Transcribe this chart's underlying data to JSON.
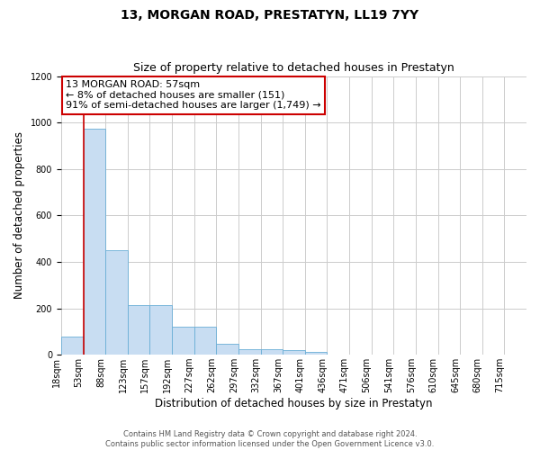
{
  "title": "13, MORGAN ROAD, PRESTATYN, LL19 7YY",
  "subtitle": "Size of property relative to detached houses in Prestatyn",
  "xlabel": "Distribution of detached houses by size in Prestatyn",
  "ylabel": "Number of detached properties",
  "bin_labels": [
    "18sqm",
    "53sqm",
    "88sqm",
    "123sqm",
    "157sqm",
    "192sqm",
    "227sqm",
    "262sqm",
    "297sqm",
    "332sqm",
    "367sqm",
    "401sqm",
    "436sqm",
    "471sqm",
    "506sqm",
    "541sqm",
    "576sqm",
    "610sqm",
    "645sqm",
    "680sqm",
    "715sqm"
  ],
  "bin_edges": [
    0,
    1,
    2,
    3,
    4,
    5,
    6,
    7,
    8,
    9,
    10,
    11,
    12,
    13,
    14,
    15,
    16,
    17,
    18,
    19,
    20,
    21
  ],
  "bar_heights": [
    80,
    975,
    450,
    215,
    215,
    120,
    120,
    47,
    25,
    25,
    20,
    12,
    0,
    0,
    0,
    0,
    0,
    0,
    0,
    0,
    0
  ],
  "bar_color": "#c8ddf2",
  "bar_edge_color": "#6aaed6",
  "property_bin": 1,
  "property_label": "57sqm",
  "red_line_color": "#cc0000",
  "annotation_line1": "13 MORGAN ROAD: 57sqm",
  "annotation_line2": "← 8% of detached houses are smaller (151)",
  "annotation_line3": "91% of semi-detached houses are larger (1,749) →",
  "annotation_box_color": "#ffffff",
  "annotation_box_edge_color": "#cc0000",
  "ylim": [
    0,
    1200
  ],
  "yticks": [
    0,
    200,
    400,
    600,
    800,
    1000,
    1200
  ],
  "background_color": "#ffffff",
  "grid_color": "#cccccc",
  "footer_text": "Contains HM Land Registry data © Crown copyright and database right 2024.\nContains public sector information licensed under the Open Government Licence v3.0.",
  "title_fontsize": 10,
  "subtitle_fontsize": 9,
  "xlabel_fontsize": 8.5,
  "ylabel_fontsize": 8.5,
  "tick_fontsize": 7,
  "annotation_fontsize": 8,
  "footer_fontsize": 6
}
